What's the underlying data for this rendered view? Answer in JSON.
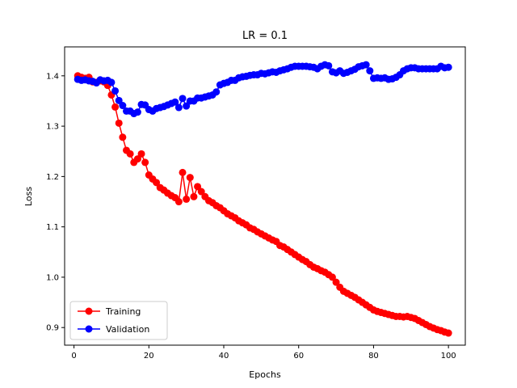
{
  "chart_data": {
    "type": "line",
    "title": "LR = 0.1",
    "xlabel": "Epochs",
    "ylabel": "Loss",
    "xlim": [
      -2.5,
      104.5
    ],
    "ylim": [
      0.865,
      1.4575
    ],
    "xticks": [
      0,
      20,
      40,
      60,
      80,
      100
    ],
    "yticks": [
      0.9,
      1.0,
      1.1,
      1.2,
      1.3,
      1.4
    ],
    "xtick_labels": [
      "0",
      "20",
      "40",
      "60",
      "80",
      "100"
    ],
    "ytick_labels": [
      "0.9",
      "1.0",
      "1.1",
      "1.2",
      "1.3",
      "1.4"
    ],
    "legend_position": "lower-left",
    "grid": false,
    "x": [
      1,
      2,
      3,
      4,
      5,
      6,
      7,
      8,
      9,
      10,
      11,
      12,
      13,
      14,
      15,
      16,
      17,
      18,
      19,
      20,
      21,
      22,
      23,
      24,
      25,
      26,
      27,
      28,
      29,
      30,
      31,
      32,
      33,
      34,
      35,
      36,
      37,
      38,
      39,
      40,
      41,
      42,
      43,
      44,
      45,
      46,
      47,
      48,
      49,
      50,
      51,
      52,
      53,
      54,
      55,
      56,
      57,
      58,
      59,
      60,
      61,
      62,
      63,
      64,
      65,
      66,
      67,
      68,
      69,
      70,
      71,
      72,
      73,
      74,
      75,
      76,
      77,
      78,
      79,
      80,
      81,
      82,
      83,
      84,
      85,
      86,
      87,
      88,
      89,
      90,
      91,
      92,
      93,
      94,
      95,
      96,
      97,
      98,
      99,
      100
    ],
    "series": [
      {
        "name": "Training",
        "color": "#ff0000",
        "values": [
          1.4,
          1.397,
          1.395,
          1.397,
          1.388,
          1.387,
          1.39,
          1.388,
          1.381,
          1.362,
          1.338,
          1.306,
          1.278,
          1.252,
          1.245,
          1.228,
          1.235,
          1.245,
          1.228,
          1.203,
          1.195,
          1.188,
          1.178,
          1.173,
          1.167,
          1.162,
          1.158,
          1.15,
          1.208,
          1.155,
          1.198,
          1.16,
          1.18,
          1.17,
          1.16,
          1.152,
          1.148,
          1.142,
          1.138,
          1.132,
          1.126,
          1.122,
          1.118,
          1.112,
          1.108,
          1.104,
          1.098,
          1.095,
          1.09,
          1.086,
          1.082,
          1.078,
          1.074,
          1.071,
          1.063,
          1.06,
          1.055,
          1.05,
          1.045,
          1.04,
          1.035,
          1.031,
          1.025,
          1.02,
          1.017,
          1.013,
          1.01,
          1.005,
          1.0,
          0.99,
          0.98,
          0.972,
          0.968,
          0.964,
          0.96,
          0.955,
          0.95,
          0.945,
          0.94,
          0.935,
          0.932,
          0.93,
          0.928,
          0.926,
          0.924,
          0.922,
          0.922,
          0.921,
          0.922,
          0.92,
          0.918,
          0.914,
          0.91,
          0.906,
          0.902,
          0.899,
          0.896,
          0.894,
          0.891,
          0.889
        ]
      },
      {
        "name": "Validation",
        "color": "#0000ff",
        "values": [
          1.393,
          1.391,
          1.392,
          1.39,
          1.389,
          1.386,
          1.392,
          1.39,
          1.391,
          1.387,
          1.37,
          1.351,
          1.341,
          1.33,
          1.33,
          1.325,
          1.328,
          1.343,
          1.342,
          1.333,
          1.33,
          1.335,
          1.337,
          1.339,
          1.342,
          1.345,
          1.348,
          1.337,
          1.355,
          1.34,
          1.35,
          1.35,
          1.356,
          1.356,
          1.358,
          1.36,
          1.362,
          1.368,
          1.382,
          1.385,
          1.387,
          1.391,
          1.391,
          1.396,
          1.398,
          1.399,
          1.401,
          1.402,
          1.402,
          1.405,
          1.404,
          1.406,
          1.408,
          1.407,
          1.41,
          1.412,
          1.414,
          1.417,
          1.419,
          1.419,
          1.419,
          1.419,
          1.418,
          1.417,
          1.414,
          1.419,
          1.422,
          1.42,
          1.408,
          1.406,
          1.41,
          1.405,
          1.407,
          1.41,
          1.413,
          1.418,
          1.42,
          1.422,
          1.41,
          1.395,
          1.396,
          1.395,
          1.396,
          1.393,
          1.394,
          1.397,
          1.402,
          1.41,
          1.414,
          1.416,
          1.416,
          1.414,
          1.414,
          1.414,
          1.414,
          1.414,
          1.414,
          1.419,
          1.416,
          1.417
        ]
      }
    ]
  }
}
